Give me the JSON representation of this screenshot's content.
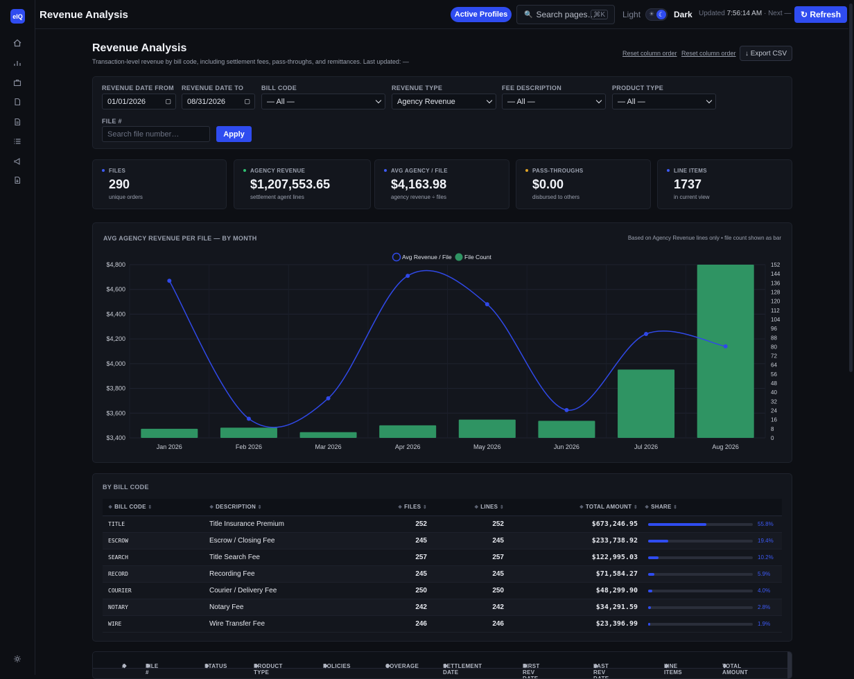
{
  "app": {
    "logo": "eIQ",
    "title": "Revenue Analysis"
  },
  "sidebar": {
    "items": [
      {
        "name": "home-icon"
      },
      {
        "name": "chart-icon"
      },
      {
        "name": "briefcase-icon"
      },
      {
        "name": "document-icon"
      },
      {
        "name": "file-icon"
      },
      {
        "name": "list-icon"
      },
      {
        "name": "megaphone-icon"
      },
      {
        "name": "report-icon"
      }
    ],
    "settings_icon": "gear-icon"
  },
  "topbar": {
    "profiles_label": "Active Profiles",
    "search_placeholder": "Search pages…",
    "search_shortcut": "⌘K",
    "theme_light": "Light",
    "theme_dark": "Dark",
    "updated_prefix": "Updated",
    "updated_time": "7:56:14 AM",
    "next_label": "· Next —",
    "refresh_label": "↻ Refresh"
  },
  "page": {
    "title": "Revenue Analysis",
    "subtitle": "Transaction-level revenue by bill code, including settlement fees, pass-throughs, and remittances. Last updated: —",
    "reset_link_1": "Reset column order",
    "reset_link_2": "Reset column order",
    "export_label": "↓ Export CSV"
  },
  "filters": {
    "date_from_label": "REVENUE DATE FROM",
    "date_from_value": "01/01/2026",
    "date_to_label": "REVENUE DATE TO",
    "date_to_value": "08/31/2026",
    "bill_code_label": "BILL CODE",
    "bill_code_value": "— All —",
    "revenue_type_label": "REVENUE TYPE",
    "revenue_type_value": "Agency Revenue",
    "fee_desc_label": "FEE DESCRIPTION",
    "fee_desc_value": "— All —",
    "product_type_label": "PRODUCT TYPE",
    "product_type_value": "— All —",
    "file_label": "FILE #",
    "file_placeholder": "Search file number…",
    "apply_label": "Apply"
  },
  "kpis": [
    {
      "label": "FILES",
      "value": "290",
      "sub": "unique orders",
      "color": "#3d5af5"
    },
    {
      "label": "AGENCY REVENUE",
      "value": "$1,207,553.65",
      "sub": "settlement agent lines",
      "color": "#2fbf71"
    },
    {
      "label": "AVG AGENCY / FILE",
      "value": "$4,163.98",
      "sub": "agency revenue ÷ files",
      "color": "#3d5af5"
    },
    {
      "label": "PASS-THROUGHS",
      "value": "$0.00",
      "sub": "disbursed to others",
      "color": "#e0a526"
    },
    {
      "label": "LINE ITEMS",
      "value": "1737",
      "sub": "in current view",
      "color": "#3d5af5"
    }
  ],
  "chart": {
    "title": "AVG AGENCY REVENUE PER FILE — BY MONTH",
    "note": "Based on Agency Revenue lines only • file count shown as bar"
  },
  "chart_data": {
    "type": "bar",
    "categories": [
      "Jan 2026",
      "Feb 2026",
      "Mar 2026",
      "Apr 2026",
      "May 2026",
      "Jun 2026",
      "Jul 2026",
      "Aug 2026"
    ],
    "series": [
      {
        "name": "Avg Revenue / File",
        "type": "line",
        "axis": "left",
        "color": "#3049e8",
        "values": [
          4670,
          3555,
          3720,
          4710,
          4480,
          3625,
          4240,
          4140
        ]
      },
      {
        "name": "File Count",
        "type": "bar",
        "axis": "right",
        "color": "#2f9463",
        "values": [
          8,
          9,
          5,
          11,
          16,
          15,
          60,
          152
        ]
      }
    ],
    "ylim_left": [
      3400,
      4800
    ],
    "yticks_left": [
      "$3,400",
      "$3,600",
      "$3,800",
      "$4,000",
      "$4,200",
      "$4,400",
      "$4,600",
      "$4,800"
    ],
    "ylim_right": [
      0,
      152
    ],
    "yticks_right": [
      0,
      8,
      16,
      24,
      32,
      40,
      48,
      56,
      64,
      72,
      80,
      88,
      96,
      104,
      112,
      120,
      128,
      136,
      144,
      152
    ],
    "legend_position": "top-center",
    "grid": true
  },
  "bill_table": {
    "title": "BY BILL CODE",
    "columns": [
      "BILL CODE",
      "DESCRIPTION",
      "FILES",
      "LINES",
      "TOTAL AMOUNT",
      "SHARE"
    ],
    "rows": [
      {
        "code": "TITLE",
        "desc": "Title Insurance Premium",
        "files": "252",
        "lines": "252",
        "total": "$673,246.95",
        "share": "55.8%",
        "share_value": 55.8
      },
      {
        "code": "ESCROW",
        "desc": "Escrow / Closing Fee",
        "files": "245",
        "lines": "245",
        "total": "$233,738.92",
        "share": "19.4%",
        "share_value": 19.4
      },
      {
        "code": "SEARCH",
        "desc": "Title Search Fee",
        "files": "257",
        "lines": "257",
        "total": "$122,995.03",
        "share": "10.2%",
        "share_value": 10.2
      },
      {
        "code": "RECORD",
        "desc": "Recording Fee",
        "files": "245",
        "lines": "245",
        "total": "$71,584.27",
        "share": "5.9%",
        "share_value": 5.9
      },
      {
        "code": "COURIER",
        "desc": "Courier / Delivery Fee",
        "files": "250",
        "lines": "250",
        "total": "$48,299.90",
        "share": "4.0%",
        "share_value": 4.0
      },
      {
        "code": "NOTARY",
        "desc": "Notary Fee",
        "files": "242",
        "lines": "242",
        "total": "$34,291.59",
        "share": "2.8%",
        "share_value": 2.8
      },
      {
        "code": "WIRE",
        "desc": "Wire Transfer Fee",
        "files": "246",
        "lines": "246",
        "total": "$23,396.99",
        "share": "1.9%",
        "share_value": 1.9
      }
    ]
  },
  "file_table": {
    "columns": [
      "#",
      "FILE #",
      "STATUS",
      "PRODUCT TYPE",
      "POLICIES",
      "COVERAGE",
      "SETTLEMENT DATE",
      "FIRST REV DATE",
      "LAST REV DATE",
      "LINE ITEMS",
      "TOTAL AMOUNT"
    ]
  }
}
